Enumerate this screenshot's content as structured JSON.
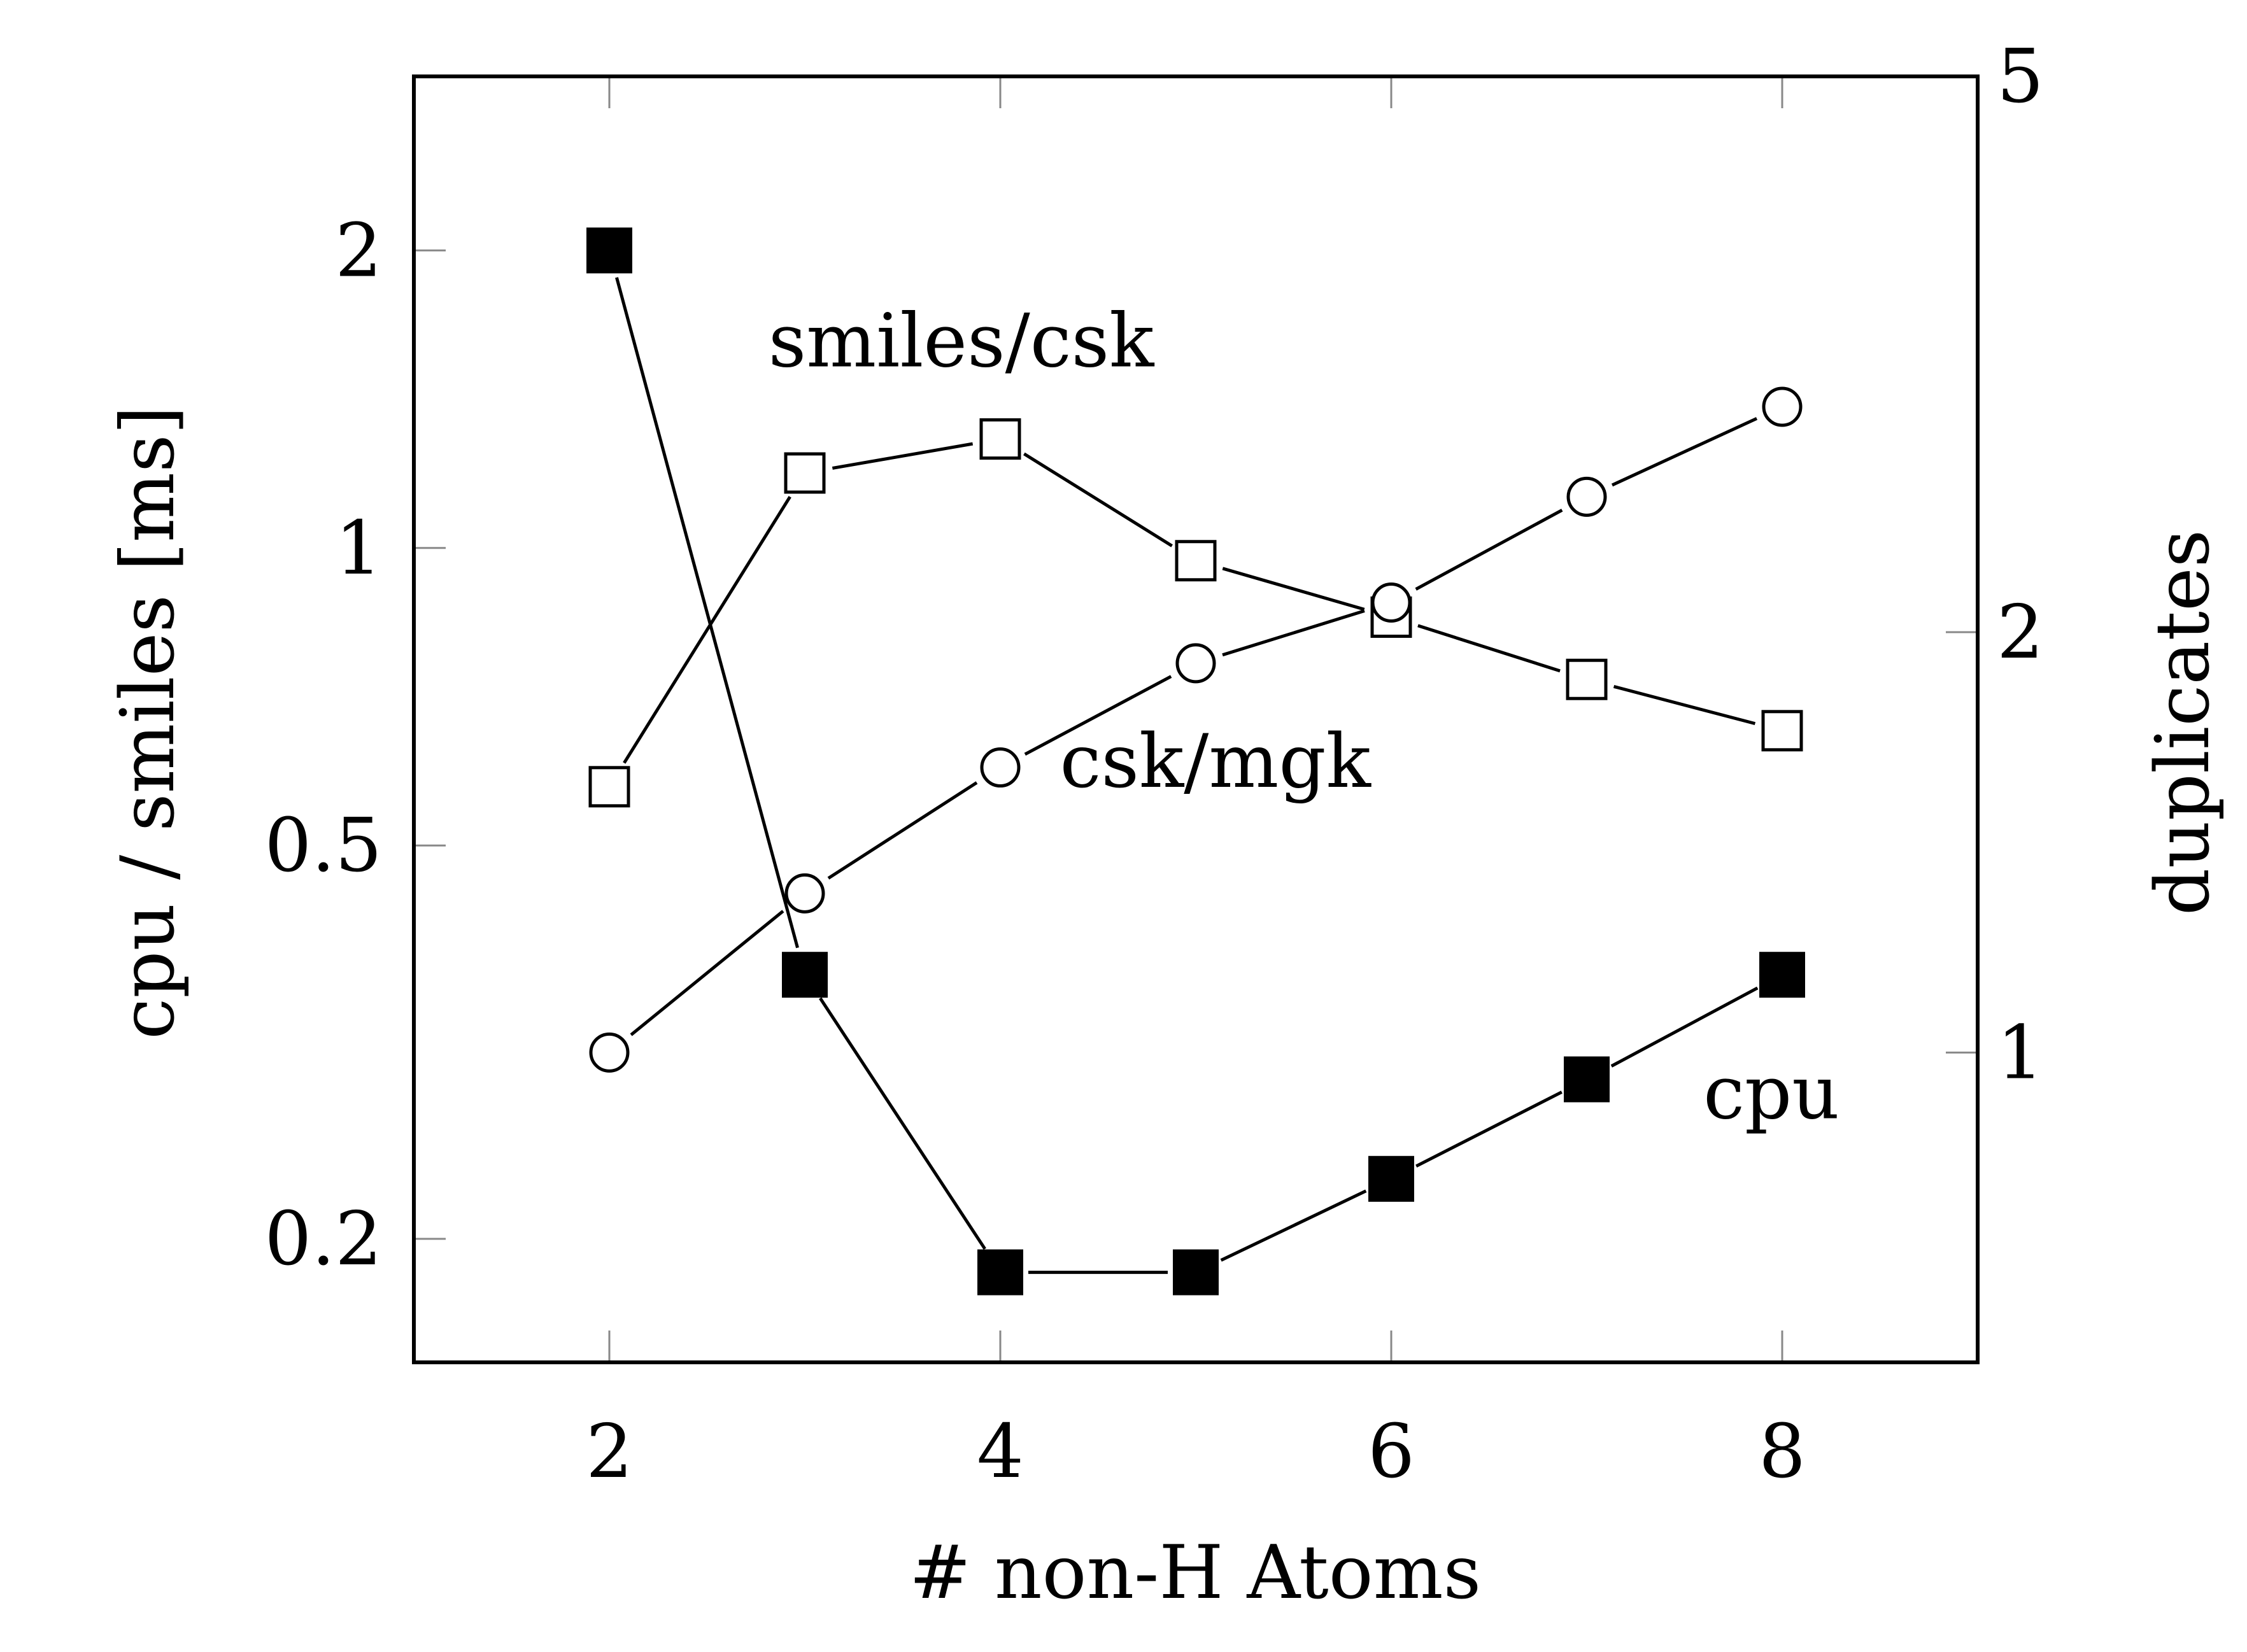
{
  "chart_data": {
    "type": "line",
    "xlabel": "# non-H Atoms",
    "ylabel_left": "cpu / smiles [ms]",
    "ylabel_right": "duplicates",
    "xlim": [
      1,
      9
    ],
    "ylim_left": [
      0.15,
      3
    ],
    "ylim_right": [
      0.6,
      5
    ],
    "yscale": "log",
    "x_ticks": [
      2,
      4,
      6,
      8
    ],
    "y_ticks_left": [
      0.2,
      0.5,
      1,
      2
    ],
    "y_tick_labels_left": [
      "0.2",
      "0.5",
      "1",
      "2"
    ],
    "y_ticks_right": [
      1,
      2,
      5
    ],
    "y_tick_labels_right": [
      "1",
      "2",
      "5"
    ],
    "grid": false,
    "series": [
      {
        "name": "cpu",
        "axis": "left",
        "marker": "filled-square",
        "x": [
          2,
          3,
          4,
          5,
          6,
          7,
          8
        ],
        "y": [
          2.0,
          0.37,
          0.185,
          0.185,
          0.23,
          0.29,
          0.37
        ],
        "label_anchor": [
          8,
          0.265
        ]
      },
      {
        "name": "smiles/csk",
        "axis": "right",
        "marker": "open-square",
        "x": [
          2,
          3,
          4,
          5,
          6,
          7,
          8
        ],
        "y": [
          1.55,
          2.6,
          2.75,
          2.25,
          2.05,
          1.85,
          1.7
        ],
        "label_anchor": [
          3.8,
          3.1
        ]
      },
      {
        "name": "csk/mgk",
        "axis": "right",
        "marker": "open-circle",
        "x": [
          2,
          3,
          4,
          5,
          6,
          7,
          8
        ],
        "y": [
          1.0,
          1.3,
          1.6,
          1.9,
          2.1,
          2.5,
          2.9
        ],
        "label_anchor": [
          5.1,
          1.55
        ]
      }
    ]
  }
}
